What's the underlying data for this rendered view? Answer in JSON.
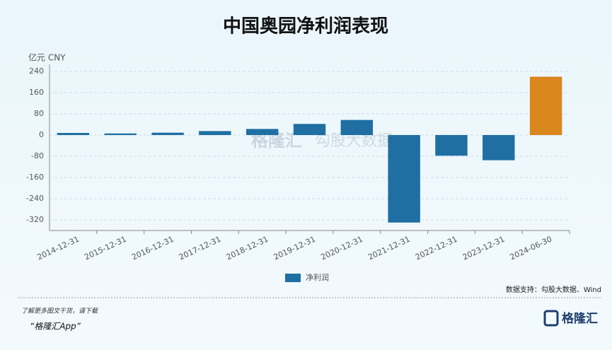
{
  "chart_data": {
    "type": "bar",
    "title": "中国奥园净利润表现",
    "y_label": "亿元  CNY",
    "categories": [
      "2014-12-31",
      "2015-12-31",
      "2016-12-31",
      "2017-12-31",
      "2018-12-31",
      "2019-12-31",
      "2020-12-31",
      "2021-12-31",
      "2022-12-31",
      "2023-12-31",
      "2024-06-30"
    ],
    "series": [
      {
        "name": "净利润",
        "color": "#1f6fa3",
        "values": [
          8,
          6,
          9,
          15,
          23,
          42,
          57,
          -330,
          -78,
          -95,
          220
        ],
        "colors": [
          "#1f6fa3",
          "#1f6fa3",
          "#1f6fa3",
          "#1f6fa3",
          "#1f6fa3",
          "#1f6fa3",
          "#1f6fa3",
          "#1f6fa3",
          "#1f6fa3",
          "#1f6fa3",
          "#d9861c"
        ]
      }
    ],
    "ylim": [
      -360,
      240
    ],
    "yticks": [
      240,
      160,
      80,
      0,
      -80,
      -160,
      -240,
      -320
    ],
    "grid": true,
    "source": "数据支持：勾股大数据、Wind",
    "watermark": [
      "格隆汇",
      "勾股大数据"
    ],
    "footer": {
      "note": "了解更多图文干货，请下载",
      "app": "“格隆汇App”",
      "logo": "格隆汇"
    }
  }
}
